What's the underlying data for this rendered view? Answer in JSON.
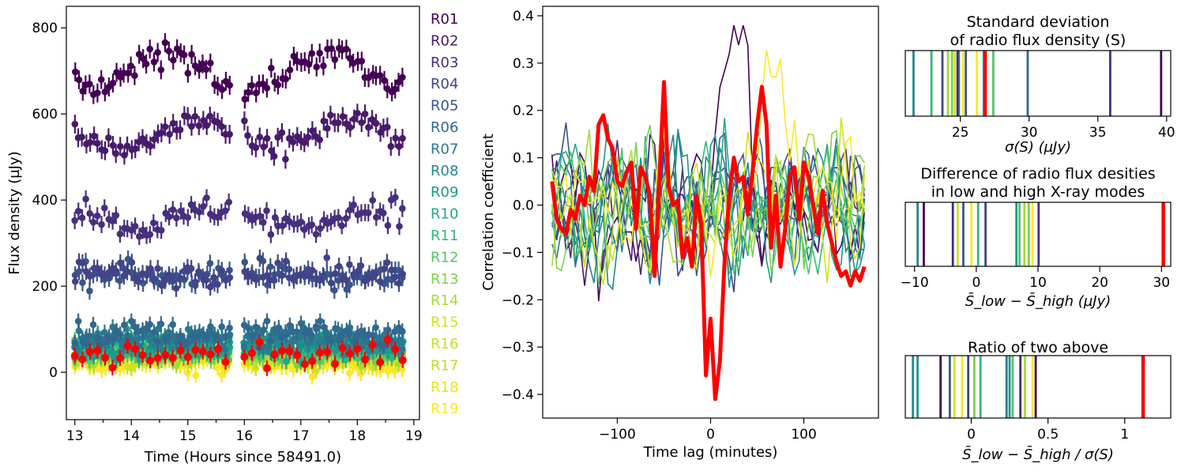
{
  "chart_data": [
    {
      "type": "scatter",
      "panel": "light curves",
      "xlabel": "Time (Hours since 58491.0)",
      "ylabel": "Flux density (µJy)",
      "xlim": [
        12.85,
        19.1
      ],
      "ylim": [
        -110,
        850
      ],
      "xticks": [
        13,
        14,
        15,
        16,
        17,
        18,
        19
      ],
      "yticks": [
        0,
        200,
        400,
        600,
        800
      ],
      "gap": [
        15.8,
        16.0
      ],
      "highlight_color": "#ff0000",
      "series": [
        {
          "name": "R01",
          "color": "#440154",
          "mean": 700,
          "err": 22
        },
        {
          "name": "R02",
          "color": "#481a6c",
          "mean": 550,
          "err": 22
        },
        {
          "name": "R03",
          "color": "#472f7d",
          "mean": 360,
          "err": 20
        },
        {
          "name": "R04",
          "color": "#414487",
          "mean": 230,
          "err": 20
        },
        {
          "name": "R05",
          "color": "#39568c",
          "mean": 225,
          "err": 20
        },
        {
          "name": "R06",
          "color": "#31688e",
          "mean": 90,
          "err": 18
        },
        {
          "name": "R07",
          "color": "#2a788e",
          "mean": 80,
          "err": 18
        },
        {
          "name": "R08",
          "color": "#23888e",
          "mean": 70,
          "err": 18
        },
        {
          "name": "R09",
          "color": "#1f988b",
          "mean": 65,
          "err": 18
        },
        {
          "name": "R10",
          "color": "#22a884",
          "mean": 60,
          "err": 18
        },
        {
          "name": "R11",
          "color": "#35b779",
          "mean": 55,
          "err": 18
        },
        {
          "name": "R12",
          "color": "#54c568",
          "mean": 50,
          "err": 18
        },
        {
          "name": "R13",
          "color": "#7ad151",
          "mean": 45,
          "err": 18
        },
        {
          "name": "R14",
          "color": "#a5db36",
          "mean": 40,
          "err": 18
        },
        {
          "name": "R15",
          "color": "#d2e21b",
          "mean": 35,
          "err": 18
        },
        {
          "name": "R16",
          "color": "#fde725",
          "mean": 30,
          "err": 18
        },
        {
          "name": "R17",
          "color": "#fde725",
          "mean": 30,
          "err": 18
        },
        {
          "name": "R18",
          "color": "#fde725",
          "mean": 30,
          "err": 18
        },
        {
          "name": "R19",
          "color": "#fde725",
          "mean": 30,
          "err": 18
        }
      ],
      "legend": {
        "labels": [
          "R01",
          "R02",
          "R03",
          "R04",
          "R05",
          "R06",
          "R07",
          "R08",
          "R09",
          "R10",
          "R11",
          "R12",
          "R13",
          "R14",
          "R15",
          "R16",
          "R17",
          "R18",
          "R19"
        ],
        "colors": [
          "#440154",
          "#481a6c",
          "#472f7d",
          "#414487",
          "#39568c",
          "#31688e",
          "#2a788e",
          "#23888e",
          "#1f988b",
          "#22a884",
          "#35b779",
          "#54c568",
          "#7ad151",
          "#a5db36",
          "#d2e21b",
          "#c8e020",
          "#bddf26",
          "#e5e419",
          "#fde725"
        ],
        "placement": "right"
      }
    },
    {
      "type": "line",
      "panel": "cross-correlation",
      "xlabel": "Time lag (minutes)",
      "ylabel": "Correlation coefficient",
      "xlim": [
        -180,
        180
      ],
      "ylim": [
        -0.45,
        0.42
      ],
      "xticks": [
        -100,
        0,
        100
      ],
      "xtick_labels": [
        "−100",
        "0",
        "100"
      ],
      "yticks": [
        -0.4,
        -0.3,
        -0.2,
        -0.1,
        0.0,
        0.1,
        0.2,
        0.3,
        0.4
      ],
      "ytick_labels": [
        "−0.4",
        "−0.3",
        "−0.2",
        "−0.1",
        "0.0",
        "0.1",
        "0.2",
        "0.3",
        "0.4"
      ],
      "lag_range": [
        -170,
        165
      ],
      "lag_step": 5,
      "highlight": {
        "color": "#ff0000",
        "lags": [
          -170,
          -165,
          -160,
          -155,
          -150,
          -145,
          -140,
          -135,
          -130,
          -125,
          -120,
          -115,
          -110,
          -105,
          -100,
          -95,
          -90,
          -85,
          -80,
          -75,
          -70,
          -65,
          -60,
          -55,
          -50,
          -45,
          -40,
          -35,
          -30,
          -25,
          -20,
          -15,
          -10,
          -5,
          0,
          5,
          10,
          15,
          20,
          25,
          30,
          35,
          40,
          45,
          50,
          55,
          60,
          65,
          70,
          75,
          80,
          85,
          90,
          95,
          100,
          105,
          110,
          115,
          120,
          125,
          130,
          135,
          140,
          145,
          150,
          155,
          160,
          165
        ],
        "values": [
          0.05,
          -0.03,
          -0.05,
          -0.06,
          -0.01,
          -0.03,
          0.02,
          0.0,
          0.06,
          0.03,
          0.17,
          0.19,
          0.14,
          0.12,
          0.05,
          0.04,
          0.07,
          0.09,
          -0.05,
          0.08,
          0.06,
          0.02,
          -0.15,
          0.05,
          0.26,
          0.04,
          0.0,
          0.01,
          -0.11,
          -0.07,
          -0.13,
          0.02,
          -0.04,
          -0.36,
          -0.24,
          -0.41,
          -0.33,
          -0.12,
          0.02,
          0.1,
          0.05,
          0.06,
          -0.02,
          0.07,
          0.17,
          0.25,
          0.17,
          -0.09,
          0.02,
          -0.13,
          -0.05,
          0.06,
          0.08,
          -0.03,
          0.09,
          0.06,
          0.0,
          -0.06,
          0.03,
          -0.04,
          -0.08,
          -0.12,
          -0.15,
          -0.14,
          -0.17,
          -0.14,
          -0.16,
          -0.13
        ]
      },
      "series_colors": [
        "#440154",
        "#481a6c",
        "#472f7d",
        "#414487",
        "#39568c",
        "#31688e",
        "#2a788e",
        "#23888e",
        "#1f988b",
        "#22a884",
        "#35b779",
        "#54c568",
        "#7ad151",
        "#a5db36",
        "#d2e21b",
        "#fde725"
      ]
    },
    {
      "type": "bar",
      "panel": "std",
      "title": [
        "Standard deviation",
        "of radio flux density (S)"
      ],
      "xlabel": "σ(S) (µJy)",
      "xlim": [
        21.0,
        40.3
      ],
      "xticks": [
        25,
        30,
        35,
        40
      ],
      "values": [
        39.6,
        35.9,
        29.9,
        21.6,
        26.7,
        27.4,
        24.9,
        22.9,
        24.4,
        25.2,
        23.7,
        24.1,
        24.6,
        25.4,
        26.2,
        24.8,
        26.8
      ],
      "colors": [
        "#440154",
        "#472f7d",
        "#31688e",
        "#23888e",
        "#35b779",
        "#54c568",
        "#21918c",
        "#35b779",
        "#7ad151",
        "#fde725",
        "#414487",
        "#a5db36",
        "#d2e21b",
        "#39568c",
        "#fde725",
        "#482878",
        "#ff0000"
      ]
    },
    {
      "type": "bar",
      "panel": "difference",
      "title": [
        "Difference of radio flux desities",
        "in low and high X-ray modes"
      ],
      "xlabel": "S̄_low − S̄_high (µJy)",
      "xlim": [
        -11.5,
        31.5
      ],
      "xticks": [
        -10,
        0,
        10,
        20,
        30
      ],
      "xtick_labels": [
        "−10",
        "0",
        "10",
        "20",
        "30"
      ],
      "values": [
        -9.5,
        -8.5,
        -3.8,
        -3.0,
        -2.1,
        -0.8,
        0.3,
        1.5,
        6.5,
        7.0,
        7.8,
        8.5,
        9.1,
        10.1,
        30.3
      ],
      "colors": [
        "#23888e",
        "#440154",
        "#482878",
        "#d2e21b",
        "#39568c",
        "#fde725",
        "#35b779",
        "#414487",
        "#1f988b",
        "#54c568",
        "#a5db36",
        "#7ad151",
        "#fde725",
        "#472f7d",
        "#ff0000"
      ]
    },
    {
      "type": "bar",
      "panel": "ratio",
      "title": [
        "Ratio of two above"
      ],
      "xlabel": "S̄_low − S̄_high / σ(S)",
      "xlim": [
        -0.43,
        1.3
      ],
      "xticks": [
        0.0,
        0.5,
        1.0
      ],
      "values": [
        -0.38,
        -0.35,
        -0.2,
        -0.14,
        -0.11,
        -0.06,
        -0.02,
        0.02,
        0.06,
        0.23,
        0.25,
        0.27,
        0.32,
        0.35,
        0.4,
        0.42,
        1.12
      ],
      "colors": [
        "#23888e",
        "#1f988b",
        "#440154",
        "#39568c",
        "#d2e21b",
        "#fde725",
        "#414487",
        "#7ad151",
        "#35b779",
        "#2a788e",
        "#1f988b",
        "#54c568",
        "#482878",
        "#a5db36",
        "#fde725",
        "#440154",
        "#ff0000"
      ]
    }
  ]
}
